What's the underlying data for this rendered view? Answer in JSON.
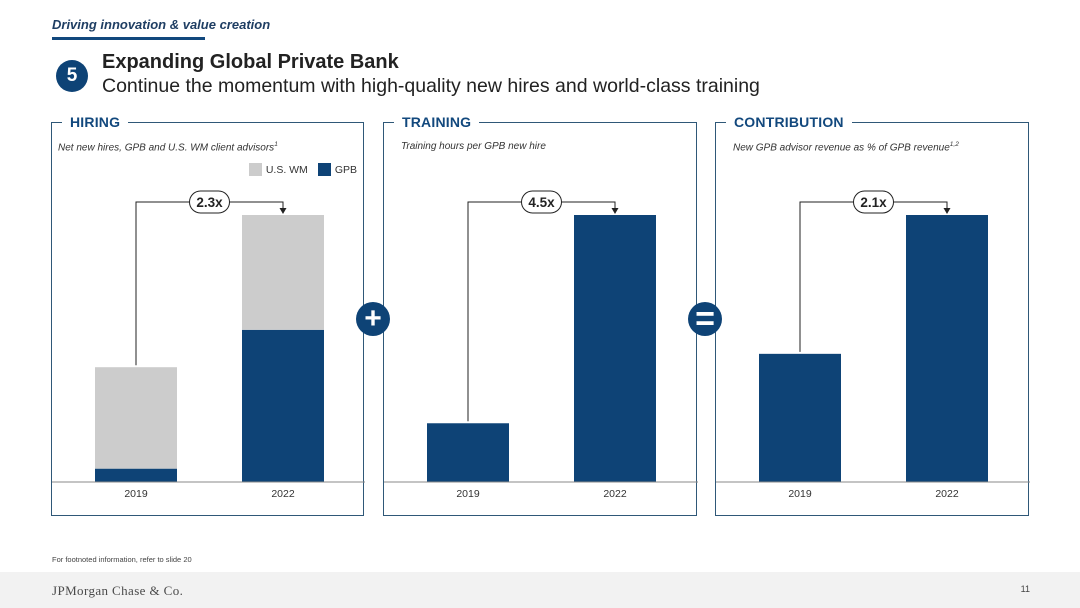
{
  "header": {
    "section_label": "Driving innovation & value creation",
    "badge_number": "5",
    "title": "Expanding Global Private Bank",
    "subtitle": "Continue the momentum with high-quality new hires and world-class training"
  },
  "operators": {
    "plus": "+",
    "equals": "="
  },
  "colors": {
    "gpb": "#0e4376",
    "us_wm": "#cccccc",
    "accent": "#12487d"
  },
  "panels": {
    "hiring": {
      "heading": "HIRING",
      "subtitle": "Net new hires, GPB and U.S. WM client advisors",
      "sup": "1",
      "multiplier": "2.3x"
    },
    "training": {
      "heading": "TRAINING",
      "subtitle": "Training hours per GPB new hire",
      "sup": "",
      "multiplier": "4.5x"
    },
    "contribution": {
      "heading": "CONTRIBUTION",
      "subtitle": "New GPB advisor revenue as % of GPB revenue",
      "sup": "1,2",
      "multiplier": "2.1x"
    }
  },
  "chart_data": [
    {
      "type": "bar",
      "stacked": true,
      "categories": [
        "2019",
        "2022"
      ],
      "series": [
        {
          "name": "GPB",
          "values": [
            0.05,
            0.57
          ]
        },
        {
          "name": "U.S. WM",
          "values": [
            0.38,
            0.43
          ]
        }
      ],
      "ylim": [
        0,
        1
      ],
      "annotation": "2.3x",
      "legend": [
        "U.S. WM",
        "GPB"
      ],
      "legend_position": "top-right"
    },
    {
      "type": "bar",
      "categories": [
        "2019",
        "2022"
      ],
      "series": [
        {
          "name": "",
          "values": [
            0.22,
            1.0
          ]
        }
      ],
      "ylim": [
        0,
        1
      ],
      "annotation": "4.5x"
    },
    {
      "type": "bar",
      "categories": [
        "2019",
        "2022"
      ],
      "series": [
        {
          "name": "",
          "values": [
            0.48,
            1.0
          ]
        }
      ],
      "ylim": [
        0,
        1
      ],
      "annotation": "2.1x"
    }
  ],
  "footer": {
    "footnote": "For footnoted information, refer to slide 20",
    "logo": "JPMorgan Chase & Co.",
    "page_number": "11"
  }
}
